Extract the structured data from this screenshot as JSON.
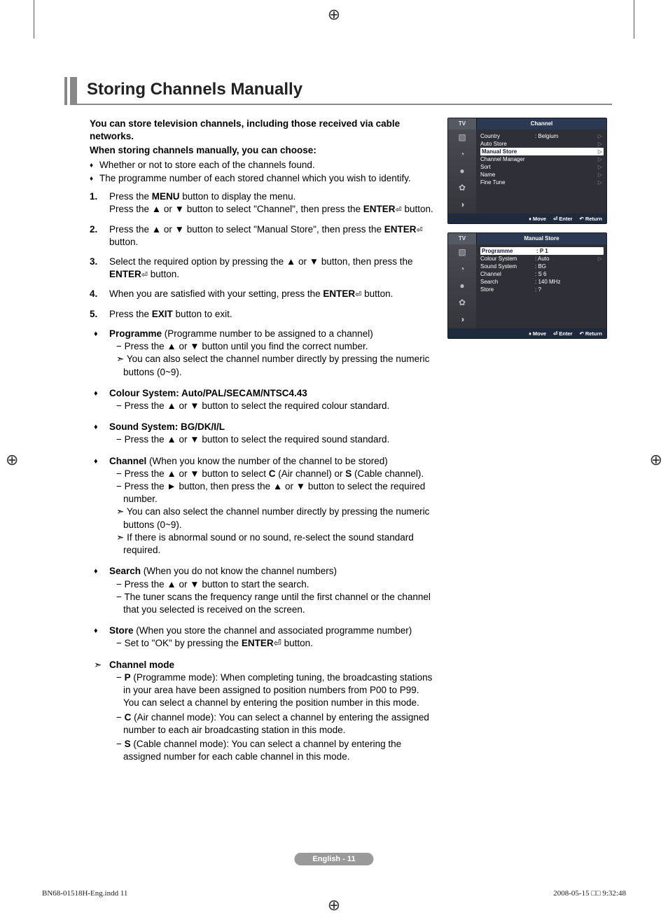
{
  "page": {
    "title": "Storing Channels Manually",
    "intro1": "You can store television channels, including those received via cable networks.",
    "intro2": "When storing channels manually, you can choose:",
    "bullets": [
      "Whether or not to store each of the channels found.",
      "The programme number of each stored channel which you wish to identify."
    ],
    "steps": [
      {
        "pre": "Press the ",
        "b1": "MENU",
        "mid": " button to display the menu.\nPress the ▲ or ▼ button to select \"Channel\", then press the ",
        "b2": "ENTER",
        "icon": "⏎",
        "post": " button."
      },
      {
        "pre": "Press the ▲ or ▼ button to select \"Manual Store\", then press the ",
        "b1": "ENTER",
        "icon": "⏎",
        "post": " button."
      },
      {
        "pre": "Select the required option by pressing the ▲ or ▼ button, then press the ",
        "b1": "ENTER",
        "icon": "⏎",
        "post": " button."
      },
      {
        "pre": "When you are satisfied with your setting, press the ",
        "b1": "ENTER",
        "icon": "⏎",
        "post": " button."
      },
      {
        "pre": "Press the ",
        "b1": "EXIT",
        "post": " button to exit."
      }
    ],
    "options": [
      {
        "title": "Programme",
        "note": " (Programme number to be assigned to a channel)",
        "lines": [
          "− Press the ▲ or ▼ button until you find the correct number."
        ],
        "arrows": [
          "You can also select the channel number directly by pressing the numeric buttons (0~9)."
        ]
      },
      {
        "title": "Colour System: Auto/PAL/SECAM/NTSC4.43",
        "note": "",
        "lines": [
          "− Press the ▲ or ▼ button to select the required colour standard."
        ],
        "arrows": []
      },
      {
        "title": "Sound System: BG/DK/I/L",
        "note": "",
        "lines": [
          "− Press the ▲ or ▼ button to select the required sound standard."
        ],
        "arrows": []
      },
      {
        "title": "Channel",
        "note": " (When you know the number of the channel to be stored)",
        "lines": [
          "− Press the ▲ or ▼ button to select C (Air channel) or S (Cable channel).",
          "− Press the ► button, then press the ▲ or ▼ button to select the required number."
        ],
        "arrows": [
          "You can also select the channel number directly by pressing the numeric buttons (0~9).",
          "If there is abnormal sound or no sound, re-select the sound standard required."
        ]
      },
      {
        "title": "Search",
        "note": " (When you do not know the channel numbers)",
        "lines": [
          "− Press the ▲ or ▼ button to start the search.",
          "− The tuner scans the frequency range until the first channel or the channel that you selected is received on the screen."
        ],
        "arrows": []
      },
      {
        "title": "Store",
        "note": " (When you store the channel and associated programme number)",
        "lines": [
          "− Set to \"OK\" by pressing the ENTER⏎ button."
        ],
        "arrows": []
      }
    ],
    "channelMode": {
      "title": "Channel mode",
      "items": [
        {
          "b": "P",
          "t": " (Programme mode): When completing tuning, the broadcasting stations in your area have been assigned to position numbers from P00 to P99. You can select a channel by entering the position number in this mode."
        },
        {
          "b": "C",
          "t": " (Air channel mode): You can select a channel by entering the assigned number to each air broadcasting station in this mode."
        },
        {
          "b": "S",
          "t": " (Cable channel mode): You can select a channel by entering the assigned number for each cable channel in this mode."
        }
      ]
    },
    "footer": "English - 11"
  },
  "osd1": {
    "tv": "TV",
    "title": "Channel",
    "icons": [
      "▧",
      "◔",
      "●",
      "✿",
      "◑"
    ],
    "rows": [
      {
        "k": "Country",
        "v": ": Belgium",
        "sel": false,
        "tri": true
      },
      {
        "k": "Auto Store",
        "v": "",
        "sel": false,
        "tri": true
      },
      {
        "k": "Manual Store",
        "v": "",
        "sel": true,
        "tri": true
      },
      {
        "k": "Channel Manager",
        "v": "",
        "sel": false,
        "tri": true
      },
      {
        "k": "Sort",
        "v": "",
        "sel": false,
        "tri": true
      },
      {
        "k": "Name",
        "v": "",
        "sel": false,
        "tri": true
      },
      {
        "k": "Fine Tune",
        "v": "",
        "sel": false,
        "tri": true
      }
    ],
    "foot": {
      "move": "Move",
      "enter": "Enter",
      "return": "Return"
    }
  },
  "osd2": {
    "tv": "TV",
    "title": "Manual Store",
    "icons": [
      "▧",
      "◔",
      "●",
      "✿",
      "◑"
    ],
    "rows": [
      {
        "k": "Programme",
        "v": ": P 1",
        "sel": true,
        "tri": false
      },
      {
        "k": "Colour System",
        "v": ": Auto",
        "sel": false,
        "tri": true
      },
      {
        "k": "Sound System",
        "v": ": BG",
        "sel": false,
        "tri": false
      },
      {
        "k": "Channel",
        "v": ": S 6",
        "sel": false,
        "tri": false
      },
      {
        "k": "Search",
        "v": ": 140 MHz",
        "sel": false,
        "tri": false
      },
      {
        "k": "Store",
        "v": ": ?",
        "sel": false,
        "tri": false
      }
    ],
    "foot": {
      "move": "Move",
      "enter": "Enter",
      "return": "Return"
    }
  },
  "printFoot": {
    "left": "BN68-01518H-Eng.indd   11",
    "right": "2008-05-15   □□ 9:32:48"
  },
  "colors": {
    "titleRule": "#888",
    "osdHeader": "#2b3a52",
    "osdBg": "#2f2f37",
    "pageFootBg": "#9a9a9a"
  }
}
